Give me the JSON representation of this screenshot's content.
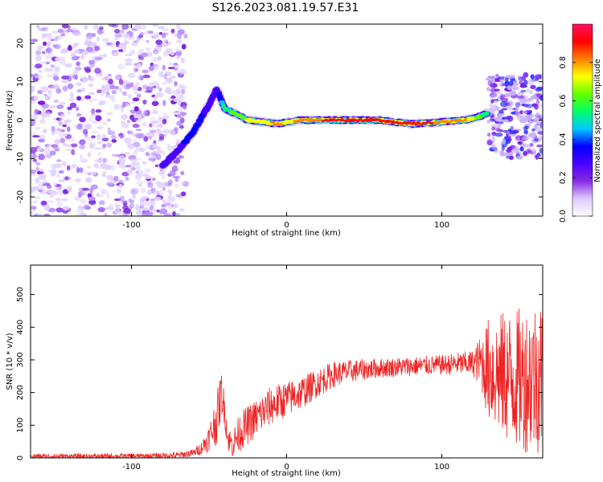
{
  "title": "S126.2023.081.19.57.E31",
  "chart_data": [
    {
      "type": "heatmap",
      "xlabel": "Height of straight line (km)",
      "ylabel": "Frequency (Hz)",
      "xlim": [
        -165,
        165
      ],
      "ylim": [
        -25,
        25
      ],
      "x_ticks": [
        -100,
        0,
        100
      ],
      "y_ticks": [
        -20,
        -10,
        0,
        10,
        20
      ],
      "grid": false,
      "colorbar": {
        "label": "Normalized spectral amplitude",
        "range": [
          0.0,
          1.0
        ],
        "ticks": [
          0.0,
          0.2,
          0.4,
          0.6,
          0.8
        ],
        "tick_labels": [
          "0.0",
          "0.2",
          "0.4",
          "0.6",
          "0.8"
        ],
        "colormap": [
          "#ffffff",
          "#dcc8ff",
          "#8a2be2",
          "#4a00ff",
          "#0000ff",
          "#00c8ff",
          "#00ff66",
          "#66ff00",
          "#ffff00",
          "#ff7f00",
          "#ff0000",
          "#ff1060"
        ]
      },
      "signal_track": {
        "x": [
          -80,
          -70,
          -60,
          -50,
          -45,
          -40,
          -35,
          -25,
          -15,
          -5,
          0,
          10,
          20,
          40,
          60,
          80,
          100,
          115,
          125,
          130
        ],
        "frequency": [
          -12,
          -8,
          -3,
          4,
          8,
          3,
          2,
          0,
          -0.5,
          -1,
          -0.5,
          0,
          0,
          0,
          0,
          -1,
          -0.5,
          0,
          1,
          2
        ],
        "amplitude": [
          0.25,
          0.3,
          0.35,
          0.3,
          0.25,
          0.55,
          0.6,
          0.7,
          0.75,
          0.8,
          0.75,
          0.8,
          0.85,
          0.95,
          0.95,
          0.9,
          0.85,
          0.8,
          0.6,
          0.5
        ]
      },
      "noise_regions": [
        {
          "x_range": [
            -165,
            -65
          ],
          "frequency_range": [
            -25,
            25
          ],
          "level": "high"
        },
        {
          "x_range": [
            130,
            165
          ],
          "frequency_range": [
            -10,
            12
          ],
          "level": "medium"
        }
      ]
    },
    {
      "type": "line",
      "xlabel": "Height of straight line (km)",
      "ylabel": "SNR (10 * v/v)",
      "xlim": [
        -165,
        165
      ],
      "ylim": [
        0,
        590
      ],
      "x_ticks": [
        -100,
        0,
        100
      ],
      "y_ticks": [
        0,
        100,
        200,
        300,
        400,
        500
      ],
      "color": "#ee2222",
      "grid": false,
      "profile": {
        "x": [
          -165,
          -120,
          -90,
          -70,
          -60,
          -55,
          -50,
          -45,
          -42,
          -40,
          -38,
          -35,
          -30,
          -20,
          -10,
          0,
          10,
          20,
          30,
          40,
          60,
          80,
          100,
          120,
          125,
          130,
          140,
          150,
          160,
          165
        ],
        "baseline": [
          5,
          5,
          6,
          8,
          15,
          30,
          60,
          120,
          200,
          150,
          60,
          40,
          80,
          120,
          160,
          180,
          200,
          230,
          255,
          265,
          275,
          280,
          285,
          290,
          295,
          270,
          250,
          240,
          250,
          260
        ],
        "spread": [
          8,
          8,
          8,
          10,
          12,
          20,
          40,
          80,
          70,
          50,
          40,
          40,
          60,
          60,
          60,
          55,
          50,
          45,
          40,
          35,
          30,
          30,
          30,
          40,
          80,
          160,
          200,
          220,
          240,
          250
        ]
      }
    }
  ]
}
